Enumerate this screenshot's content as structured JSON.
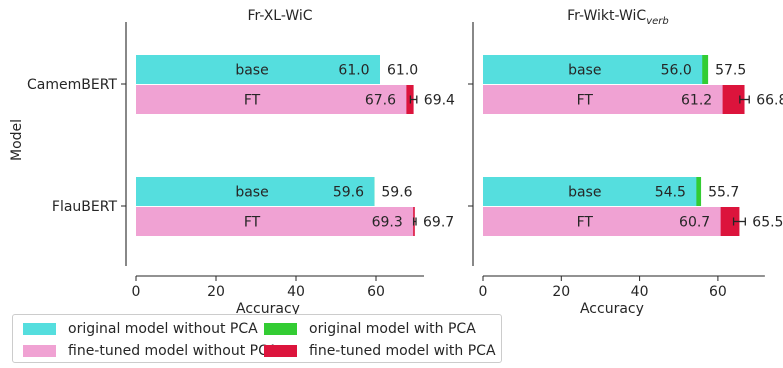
{
  "figure": {
    "ylabel": "Model",
    "legend": {
      "placement": "bottom-left",
      "entries": [
        {
          "label": "original model without PCA",
          "color": "#55dede"
        },
        {
          "label": "fine-tuned model without PCA",
          "color": "#f0a2d3"
        },
        {
          "label": "original model with PCA",
          "color": "#33cc33"
        },
        {
          "label": "fine-tuned model with PCA",
          "color": "#dc143c"
        }
      ]
    }
  },
  "chart_data": [
    {
      "type": "bar",
      "orientation": "horizontal",
      "title": "Fr-XL-WiC",
      "xlabel": "Accuracy",
      "xlim": [
        0,
        72
      ],
      "xticks": [
        "0",
        "20",
        "40",
        "60"
      ],
      "categories": [
        "CamemBERT",
        "FlauBERT"
      ],
      "series": [
        {
          "name": "base",
          "label": "base",
          "without_pca": {
            "values": [
              61.0,
              59.6
            ],
            "labels": [
              "61.0",
              "59.6"
            ],
            "color": "#55dede"
          },
          "with_pca": {
            "values": [
              61.0,
              59.6
            ],
            "labels": [
              "61.0",
              "59.6"
            ],
            "error": [
              0.0,
              0.0
            ],
            "color": "#33cc33"
          }
        },
        {
          "name": "FT",
          "label": "FT",
          "without_pca": {
            "values": [
              67.6,
              69.3
            ],
            "labels": [
              "67.6",
              "69.3"
            ],
            "color": "#f0a2d3"
          },
          "with_pca": {
            "values": [
              69.4,
              69.7
            ],
            "labels": [
              "69.4",
              "69.7"
            ],
            "error": [
              0.8,
              0.3
            ],
            "color": "#dc143c"
          }
        }
      ]
    },
    {
      "type": "bar",
      "orientation": "horizontal",
      "title": "Fr-Wikt-WiC",
      "title_subscript": "verb",
      "xlabel": "Accuracy",
      "xlim": [
        0,
        72
      ],
      "xticks": [
        "0",
        "20",
        "40",
        "60"
      ],
      "categories": [
        "CamemBERT",
        "FlauBERT"
      ],
      "series": [
        {
          "name": "base",
          "label": "base",
          "without_pca": {
            "values": [
              56.0,
              54.5
            ],
            "labels": [
              "56.0",
              "54.5"
            ],
            "color": "#55dede"
          },
          "with_pca": {
            "values": [
              57.5,
              55.7
            ],
            "labels": [
              "57.5",
              "55.7"
            ],
            "error": [
              0.0,
              0.0
            ],
            "color": "#33cc33"
          }
        },
        {
          "name": "FT",
          "label": "FT",
          "without_pca": {
            "values": [
              61.2,
              60.7
            ],
            "labels": [
              "61.2",
              "60.7"
            ],
            "color": "#f0a2d3"
          },
          "with_pca": {
            "values": [
              66.8,
              65.5
            ],
            "labels": [
              "66.8",
              "65.5"
            ],
            "error": [
              1.2,
              1.5
            ],
            "color": "#dc143c"
          }
        }
      ]
    }
  ]
}
